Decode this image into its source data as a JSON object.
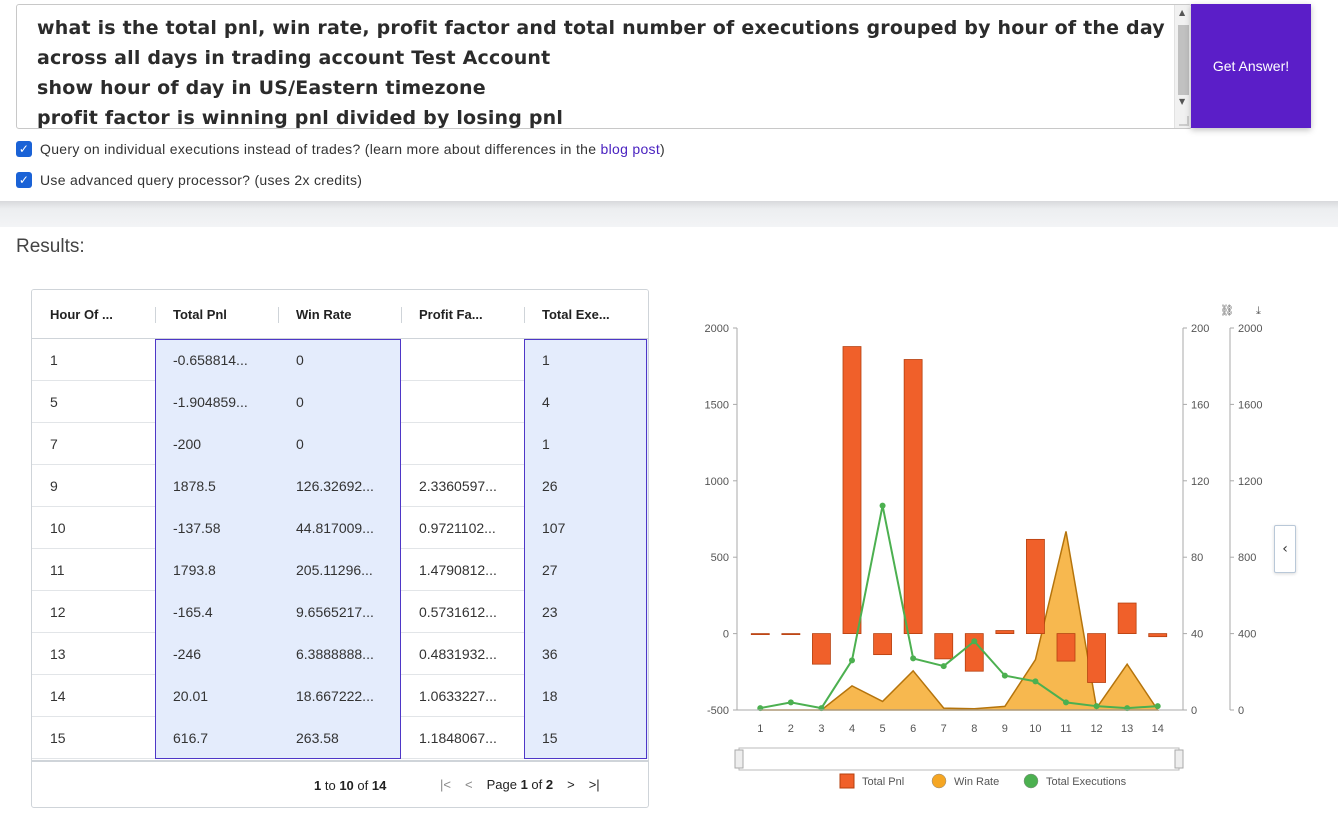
{
  "query": {
    "lines": [
      "what is the total pnl, win rate, profit factor and total number of executions grouped by hour of the day",
      "across all days in trading account Test Account",
      "show hour of day in US/Eastern timezone",
      "profit factor is winning pnl divided by losing pnl"
    ],
    "submit_label": "Get Answer!"
  },
  "options": {
    "executions": {
      "label_before": "Query on individual executions instead of trades? (learn more about differences in the ",
      "link": "blog post",
      "label_after": ")",
      "checked": true
    },
    "advanced": {
      "label": "Use advanced query processor? (uses 2x credits)",
      "checked": true
    }
  },
  "results_title": "Results:",
  "grid": {
    "columns": [
      "Hour Of ...",
      "Total Pnl",
      "Win Rate",
      "Profit Fa...",
      "Total Exe..."
    ],
    "rows": [
      [
        "1",
        "-0.658814...",
        "0",
        "",
        "1"
      ],
      [
        "5",
        "-1.904859...",
        "0",
        "",
        "4"
      ],
      [
        "7",
        "-200",
        "0",
        "",
        "1"
      ],
      [
        "9",
        "1878.5",
        "126.32692...",
        "2.3360597...",
        "26"
      ],
      [
        "10",
        "-137.58",
        "44.817009...",
        "0.9721102...",
        "107"
      ],
      [
        "11",
        "1793.8",
        "205.11296...",
        "1.4790812...",
        "27"
      ],
      [
        "12",
        "-165.4",
        "9.6565217...",
        "0.5731612...",
        "23"
      ],
      [
        "13",
        "-246",
        "6.3888888...",
        "0.4831932...",
        "36"
      ],
      [
        "14",
        "20.01",
        "18.667222...",
        "1.0633227...",
        "18"
      ],
      [
        "15",
        "616.7",
        "263.58",
        "1.1848067...",
        "15"
      ]
    ],
    "pagination": {
      "from": "1",
      "to_word": "to",
      "to": "10",
      "of_word": "of",
      "total": "14",
      "page_word": "Page",
      "page": "1",
      "pages": "2"
    }
  },
  "chart_data": {
    "type": "bar",
    "categories": [
      "1",
      "2",
      "3",
      "4",
      "5",
      "6",
      "7",
      "8",
      "9",
      "10",
      "11",
      "12",
      "13",
      "14"
    ],
    "series": [
      {
        "name": "Total Pnl",
        "type": "bar",
        "axis": "left",
        "color": "#f0602a",
        "values": [
          -0.66,
          -1.9,
          -200,
          1878.5,
          -137.58,
          1793.8,
          -165.4,
          -246,
          20.01,
          616.7,
          -180,
          -320,
          200,
          -20
        ]
      },
      {
        "name": "Win Rate",
        "type": "area",
        "axis": "right",
        "color": "#f5a623",
        "values": [
          0,
          0,
          0,
          126.3,
          44.8,
          205.1,
          9.7,
          6.4,
          18.7,
          263.6,
          935,
          10,
          240,
          0
        ]
      },
      {
        "name": "Total Executions",
        "type": "line",
        "axis": "right-inner",
        "color": "#4cb050",
        "values": [
          1,
          4,
          1,
          26,
          107,
          27,
          23,
          36,
          18,
          15,
          4,
          2,
          1,
          2
        ]
      }
    ],
    "y_left": {
      "min": -500,
      "max": 2000,
      "ticks": [
        "-500",
        "0",
        "500",
        "1000",
        "1500",
        "2000"
      ]
    },
    "y_right_inner": {
      "min": 0,
      "max": 200,
      "ticks": [
        "0",
        "40",
        "80",
        "120",
        "160",
        "200"
      ]
    },
    "y_right": {
      "min": 0,
      "max": 2000,
      "ticks": [
        "0",
        "400",
        "800",
        "1200",
        "1600",
        "2000"
      ]
    },
    "legend": [
      "Total Pnl",
      "Win Rate",
      "Total Executions"
    ],
    "legend_position": "bottom"
  }
}
